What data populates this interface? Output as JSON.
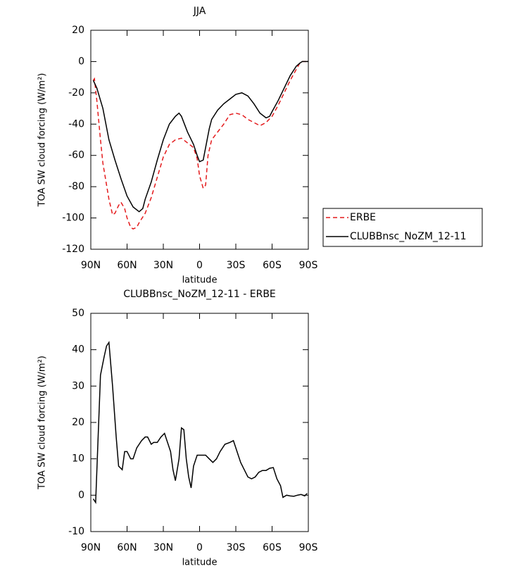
{
  "chart_data": [
    {
      "type": "line",
      "title": "JJA",
      "xlabel": "latitude",
      "ylabel": "TOA SW cloud forcing (W/m²)",
      "xlim": [
        90,
        -90
      ],
      "xticks": [
        {
          "value": 90,
          "label": "90N"
        },
        {
          "value": 60,
          "label": "60N"
        },
        {
          "value": 30,
          "label": "30N"
        },
        0,
        {
          "value": -30,
          "label": "30S"
        },
        {
          "value": -60,
          "label": "60S"
        },
        {
          "value": -90,
          "label": "90S"
        }
      ],
      "ylim": [
        -120,
        20
      ],
      "yticks": [
        -120,
        -100,
        -80,
        -60,
        -40,
        -20,
        0,
        20
      ],
      "legend": "right",
      "series": [
        {
          "name": "ERBE",
          "color": "#e41a1c",
          "line_style": "dashed",
          "x": [
            88,
            87,
            85,
            82,
            80,
            75,
            72,
            70,
            67,
            65,
            62,
            60,
            57,
            55,
            52,
            50,
            45,
            40,
            35,
            30,
            25,
            20,
            15,
            10,
            5,
            2,
            0,
            -3,
            -5,
            -7,
            -10,
            -15,
            -20,
            -25,
            -30,
            -35,
            -40,
            -45,
            -50,
            -55,
            -60,
            -65,
            -70,
            -75,
            -80,
            -83,
            -85,
            -90
          ],
          "values": [
            -12,
            -11,
            -25,
            -50,
            -65,
            -88,
            -98,
            -97,
            -92,
            -90,
            -94,
            -100,
            -106,
            -107,
            -106,
            -103,
            -97,
            -87,
            -74,
            -61,
            -53,
            -50,
            -49,
            -52,
            -55,
            -62,
            -73,
            -81,
            -79,
            -60,
            -50,
            -45,
            -40,
            -34,
            -33,
            -34,
            -37,
            -39,
            -41,
            -39,
            -35,
            -28,
            -20,
            -12,
            -5,
            -1,
            0,
            0
          ]
        },
        {
          "name": "CLUBBnsc_NoZM_12-11",
          "color": "#000000",
          "line_style": "solid",
          "x": [
            88,
            85,
            80,
            75,
            70,
            65,
            60,
            55,
            50,
            47,
            45,
            40,
            35,
            30,
            25,
            20,
            17,
            15,
            10,
            5,
            2,
            0,
            -3,
            -5,
            -8,
            -10,
            -15,
            -20,
            -25,
            -30,
            -35,
            -40,
            -45,
            -50,
            -55,
            -58,
            -60,
            -65,
            -70,
            -75,
            -80,
            -83,
            -85,
            -90
          ],
          "values": [
            -12,
            -17,
            -30,
            -50,
            -63,
            -75,
            -86,
            -93,
            -96,
            -94,
            -88,
            -77,
            -63,
            -50,
            -40,
            -35,
            -33,
            -35,
            -45,
            -53,
            -60,
            -64,
            -63,
            -55,
            -43,
            -37,
            -31,
            -27,
            -24,
            -21,
            -20,
            -22,
            -27,
            -33,
            -36,
            -35,
            -32,
            -25,
            -17,
            -9,
            -3,
            -1,
            0,
            0
          ]
        }
      ]
    },
    {
      "type": "line",
      "title": "CLUBBnsc_NoZM_12-11 - ERBE",
      "xlabel": "latitude",
      "ylabel": "TOA SW cloud forcing (W/m²)",
      "xlim": [
        90,
        -90
      ],
      "xticks": [
        {
          "value": 90,
          "label": "90N"
        },
        {
          "value": 60,
          "label": "60N"
        },
        {
          "value": 30,
          "label": "30N"
        },
        0,
        {
          "value": -30,
          "label": "30S"
        },
        {
          "value": -60,
          "label": "60S"
        },
        {
          "value": -90,
          "label": "90S"
        }
      ],
      "ylim": [
        -10,
        50
      ],
      "yticks": [
        -10,
        0,
        10,
        20,
        30,
        40,
        50
      ],
      "color": "#000000",
      "x": [
        88,
        86,
        82,
        79,
        77,
        75,
        72,
        69,
        67,
        64,
        62,
        60,
        57,
        55,
        52,
        48,
        45,
        43,
        40,
        38,
        35,
        32,
        29,
        27,
        24,
        22,
        20,
        17,
        15,
        13,
        11,
        9,
        7,
        5,
        2,
        -2,
        -5,
        -8,
        -11,
        -14,
        -17,
        -21,
        -25,
        -28,
        -31,
        -34,
        -37,
        -40,
        -43,
        -46,
        -49,
        -52,
        -55,
        -58,
        -61,
        -64,
        -67,
        -69,
        -72,
        -75,
        -78,
        -81,
        -84,
        -87,
        -89
      ],
      "values": [
        -1,
        -2,
        33,
        38,
        41,
        42,
        30,
        16,
        8,
        7,
        12,
        12,
        10,
        10,
        13,
        15,
        16,
        16,
        14,
        14.5,
        14.5,
        16,
        17,
        15,
        12,
        7,
        4,
        10,
        18.5,
        18,
        10,
        5,
        2,
        8,
        11,
        11,
        11,
        10,
        9,
        10,
        12,
        14,
        14.5,
        15,
        12,
        9,
        7,
        5,
        4.5,
        5,
        6.3,
        6.8,
        6.8,
        7.4,
        7.6,
        4.5,
        2.6,
        -0.6,
        0,
        -0.2,
        -0.3,
        0,
        0.2,
        -0.2,
        0.5
      ]
    }
  ]
}
